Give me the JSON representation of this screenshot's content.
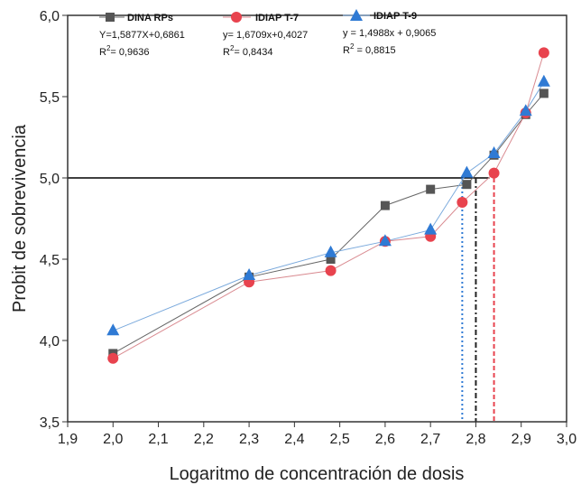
{
  "chart_data": {
    "type": "line",
    "xlabel": "Logaritmo de concentración de dosis",
    "ylabel": "Probit de sobrevivencia",
    "xlim": [
      1.9,
      3.0
    ],
    "ylim": [
      3.5,
      6.0
    ],
    "x_ticks": [
      "1,9",
      "2,0",
      "2,1",
      "2,2",
      "2,3",
      "2,4",
      "2,5",
      "2,6",
      "2,7",
      "2,8",
      "2,9",
      "3,0"
    ],
    "y_ticks": [
      "3,5",
      "4,0",
      "4,5",
      "5,0",
      "5,5",
      "6,0"
    ],
    "reference_line": {
      "y": 5.0,
      "x_range": [
        1.9,
        2.83
      ],
      "color": "#000000"
    },
    "series": [
      {
        "name": "DINA RPs",
        "marker": "square",
        "color": "#555555",
        "line_color": "#666666",
        "equation": "Y=1,5877X+0,6861",
        "r2_label": "R",
        "r2_value": "= 0,9636",
        "x": [
          2.0,
          2.3,
          2.48,
          2.6,
          2.7,
          2.78,
          2.84,
          2.91,
          2.95
        ],
        "y": [
          3.92,
          4.39,
          4.5,
          4.83,
          4.93,
          4.96,
          5.14,
          5.39,
          5.52
        ],
        "drop_x": 2.8,
        "drop_color": "#222222"
      },
      {
        "name": "IDIAP T-7",
        "marker": "circle",
        "color": "#e8434e",
        "line_color": "#d98a90",
        "equation": "y= 1,6709x+0,4027",
        "r2_label": "R",
        "r2_value": "= 0,8434",
        "x": [
          2.0,
          2.3,
          2.48,
          2.6,
          2.7,
          2.77,
          2.84,
          2.91,
          2.95
        ],
        "y": [
          3.89,
          4.36,
          4.43,
          4.61,
          4.64,
          4.85,
          5.03,
          5.4,
          5.77
        ],
        "drop_x": 2.84,
        "drop_color": "#e8434e"
      },
      {
        "name": "IDIAP T-9",
        "marker": "triangle",
        "color": "#2f7ad4",
        "line_color": "#7aa9dc",
        "equation": "y = 1,4988x + 0,9065",
        "r2_label": "R",
        "r2_value": " = 0,8815",
        "x": [
          2.0,
          2.3,
          2.48,
          2.6,
          2.7,
          2.78,
          2.84,
          2.91,
          2.95
        ],
        "y": [
          4.06,
          4.4,
          4.54,
          4.61,
          4.68,
          5.03,
          5.15,
          5.41,
          5.59
        ],
        "drop_x": 2.77,
        "drop_color": "#2f7ad4"
      }
    ]
  }
}
